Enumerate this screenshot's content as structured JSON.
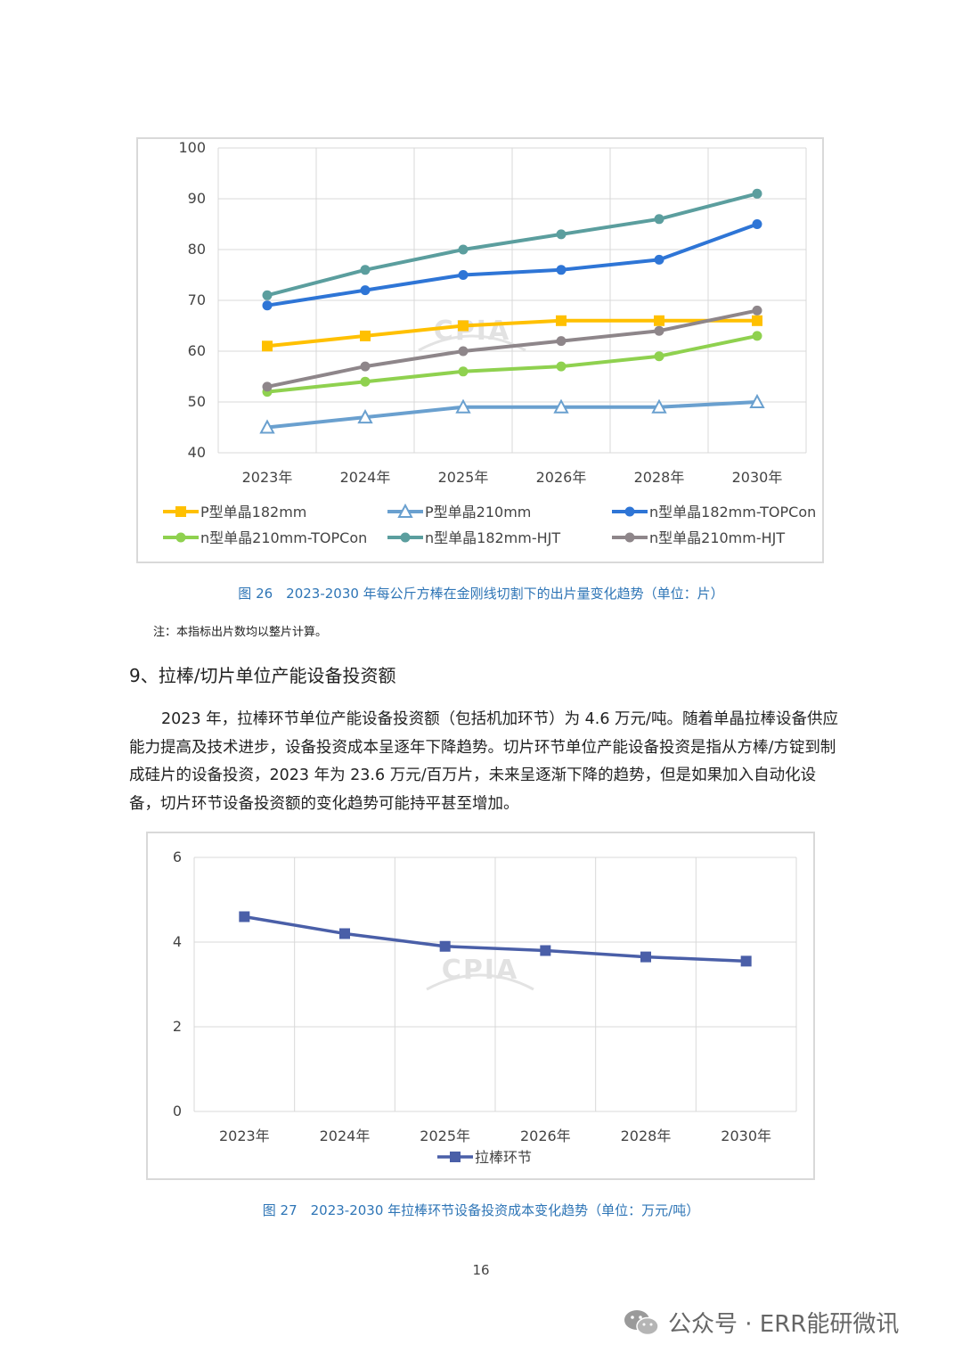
{
  "chart_data": [
    {
      "type": "line",
      "title": "",
      "categories": [
        "2023年",
        "2024年",
        "2025年",
        "2026年",
        "2028年",
        "2030年"
      ],
      "ylim": [
        40,
        100
      ],
      "yticks": [
        40,
        50,
        60,
        70,
        80,
        90,
        100
      ],
      "grid": true,
      "legend": "bottom",
      "watermark": "CPIA",
      "series": [
        {
          "name": "P型单晶182mm",
          "values": [
            61,
            63,
            65,
            66,
            66,
            66
          ],
          "color": "#ffc000",
          "marker": "square"
        },
        {
          "name": "P型单晶210mm",
          "values": [
            45,
            47,
            49,
            49,
            49,
            50
          ],
          "color": "#6aa0cf",
          "marker": "triangle"
        },
        {
          "name": "n型单晶182mm-TOPCon",
          "values": [
            69,
            72,
            75,
            76,
            78,
            85
          ],
          "color": "#2e75d6",
          "marker": "circle"
        },
        {
          "name": "n型单晶210mm-TOPCon",
          "values": [
            52,
            54,
            56,
            57,
            59,
            63
          ],
          "color": "#8fd14f",
          "marker": "circle"
        },
        {
          "name": "n型单晶182mm-HJT",
          "values": [
            71,
            76,
            80,
            83,
            86,
            91
          ],
          "color": "#5b9e9e",
          "marker": "circle"
        },
        {
          "name": "n型单晶210mm-HJT",
          "values": [
            53,
            57,
            60,
            62,
            64,
            68
          ],
          "color": "#8e868a",
          "marker": "circle"
        }
      ]
    },
    {
      "type": "line",
      "title": "",
      "categories": [
        "2023年",
        "2024年",
        "2025年",
        "2026年",
        "2028年",
        "2030年"
      ],
      "ylim": [
        0,
        6
      ],
      "yticks": [
        0,
        2,
        4,
        6
      ],
      "grid": true,
      "legend": "bottom",
      "watermark": "CPIA",
      "series": [
        {
          "name": "拉棒环节",
          "values": [
            4.6,
            4.2,
            3.9,
            3.8,
            3.65,
            3.55
          ],
          "color": "#4a5fa8",
          "marker": "square"
        }
      ]
    }
  ],
  "captions": {
    "fig26": "图 26　2023-2030 年每公斤方棒在金刚线切割下的出片量变化趋势（单位：片）",
    "fig27": "图 27　2023-2030 年拉棒环节设备投资成本变化趋势（单位：万元/吨）"
  },
  "note": "注：本指标出片数均以整片计算。",
  "heading": "9、拉棒/切片单位产能设备投资额",
  "paragraph": "2023 年，拉棒环节单位产能设备投资额（包括机加环节）为 4.6 万元/吨。随着单晶拉棒设备供应能力提高及技术进步，设备投资成本呈逐年下降趋势。切片环节单位产能设备投资是指从方棒/方锭到制成硅片的设备投资，2023 年为 23.6 万元/百万片，未来呈逐渐下降的趋势，但是如果加入自动化设备，切片环节设备投资额的变化趋势可能持平甚至增加。",
  "page_number": "16",
  "footer": {
    "source": "公众号 · ERR能研微讯",
    "icon": "wechat-icon"
  }
}
